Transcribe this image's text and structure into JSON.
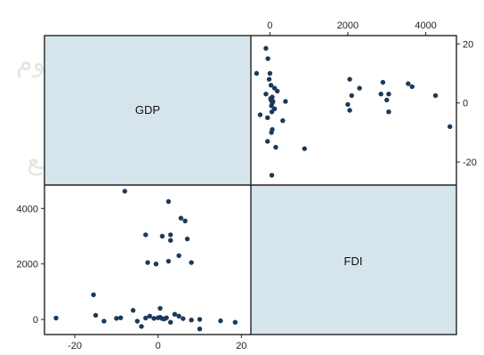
{
  "chart_data": {
    "type": "scatter",
    "variables": [
      "GDP",
      "FDI"
    ],
    "gdp_axis": {
      "ticks": [
        -20,
        0,
        20
      ],
      "range": [
        -26,
        21
      ]
    },
    "fdi_axis": {
      "ticks": [
        0,
        2000,
        4000
      ],
      "range": [
        -350,
        4650
      ]
    },
    "points": [
      {
        "gdp": 18.5,
        "fdi": -100
      },
      {
        "gdp": 10,
        "fdi": 1
      },
      {
        "gdp": 8,
        "fdi": -20
      },
      {
        "gdp": 15,
        "fdi": -50
      },
      {
        "gdp": -24.5,
        "fdi": 50
      },
      {
        "gdp": -15.5,
        "fdi": 890
      },
      {
        "gdp": -15,
        "fdi": 150
      },
      {
        "gdp": -13,
        "fdi": -60
      },
      {
        "gdp": -10,
        "fdi": 40
      },
      {
        "gdp": -9,
        "fdi": 60
      },
      {
        "gdp": -6,
        "fdi": 330
      },
      {
        "gdp": -5,
        "fdi": -60
      },
      {
        "gdp": -4,
        "fdi": -250
      },
      {
        "gdp": -3,
        "fdi": 50
      },
      {
        "gdp": -2,
        "fdi": 120
      },
      {
        "gdp": -1,
        "fdi": 40
      },
      {
        "gdp": 0,
        "fdi": 60
      },
      {
        "gdp": 0.5,
        "fdi": 80
      },
      {
        "gdp": 1,
        "fdi": 30
      },
      {
        "gdp": 1.5,
        "fdi": 20
      },
      {
        "gdp": 2,
        "fdi": 60
      },
      {
        "gdp": 0.5,
        "fdi": 400
      },
      {
        "gdp": 3,
        "fdi": -100
      },
      {
        "gdp": 4,
        "fdi": 190
      },
      {
        "gdp": 5,
        "fdi": 120
      },
      {
        "gdp": 6,
        "fdi": 30
      },
      {
        "gdp": 10,
        "fdi": -340
      },
      {
        "gdp": -3,
        "fdi": 3050
      },
      {
        "gdp": 1,
        "fdi": 3000
      },
      {
        "gdp": 3,
        "fdi": 3050
      },
      {
        "gdp": 3,
        "fdi": 2850
      },
      {
        "gdp": -2.5,
        "fdi": 2050
      },
      {
        "gdp": -0.5,
        "fdi": 2000
      },
      {
        "gdp": 2.5,
        "fdi": 2100
      },
      {
        "gdp": 5,
        "fdi": 2300
      },
      {
        "gdp": 8,
        "fdi": 2050
      },
      {
        "gdp": 5.5,
        "fdi": 3650
      },
      {
        "gdp": 6.5,
        "fdi": 3550
      },
      {
        "gdp": 7,
        "fdi": 2900
      },
      {
        "gdp": 2.5,
        "fdi": 4250
      },
      {
        "gdp": -8,
        "fdi": 4620
      }
    ]
  }
}
